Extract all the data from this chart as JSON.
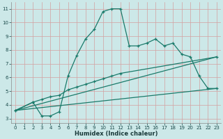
{
  "xlabel": "Humidex (Indice chaleur)",
  "bg_color": "#cce8e8",
  "grid_color": "#d4a0a0",
  "line_color": "#1a7a6a",
  "xlim": [
    -0.5,
    23.5
  ],
  "ylim": [
    2.7,
    11.5
  ],
  "xticks": [
    0,
    1,
    2,
    3,
    4,
    5,
    6,
    7,
    8,
    9,
    10,
    11,
    12,
    13,
    14,
    15,
    16,
    17,
    18,
    19,
    20,
    21,
    22,
    23
  ],
  "yticks": [
    3,
    4,
    5,
    6,
    7,
    8,
    9,
    10,
    11
  ],
  "line1_x": [
    0,
    2,
    3,
    4,
    5,
    6,
    7,
    8,
    9,
    10,
    11,
    12,
    13,
    14,
    15,
    16,
    17,
    18,
    19,
    20,
    21,
    22,
    23
  ],
  "line1_y": [
    3.6,
    4.2,
    3.2,
    3.2,
    3.5,
    6.1,
    7.6,
    8.8,
    9.5,
    10.8,
    11.0,
    11.0,
    8.3,
    8.3,
    8.5,
    8.8,
    8.3,
    8.5,
    7.7,
    7.5,
    6.1,
    5.2,
    5.2
  ],
  "line2_x": [
    0,
    2,
    3,
    4,
    5,
    6,
    7,
    8,
    9,
    10,
    11,
    12,
    23
  ],
  "line2_y": [
    3.6,
    4.2,
    4.4,
    4.6,
    4.7,
    5.1,
    5.3,
    5.5,
    5.7,
    5.9,
    6.1,
    6.3,
    7.5
  ],
  "line3_x": [
    0,
    23
  ],
  "line3_y": [
    3.6,
    7.5
  ],
  "line4_x": [
    0,
    23
  ],
  "line4_y": [
    3.6,
    5.2
  ]
}
